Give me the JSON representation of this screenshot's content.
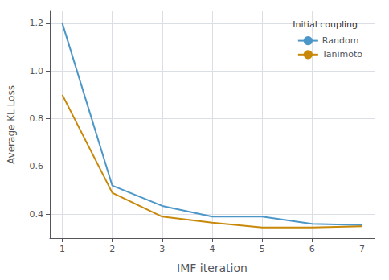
{
  "chart_data": {
    "type": "line",
    "x": [
      1,
      2,
      3,
      4,
      5,
      6,
      7
    ],
    "series": [
      {
        "name": "Random",
        "color": "#4C96C8",
        "values": [
          1.2,
          0.52,
          0.435,
          0.39,
          0.39,
          0.36,
          0.355
        ]
      },
      {
        "name": "Tanimoto",
        "color": "#C8880A",
        "values": [
          0.9,
          0.49,
          0.39,
          0.365,
          0.345,
          0.345,
          0.35
        ]
      }
    ],
    "xlabel": "IMF iteration",
    "ylabel": "Average KL Loss",
    "legend_title": "Initial coupling",
    "legend": "upper right",
    "xlim": [
      0.75,
      7.25
    ],
    "ylim": [
      0.3,
      1.25
    ],
    "xticks": [
      1,
      2,
      3,
      4,
      5,
      6,
      7
    ],
    "yticks": [
      0.4,
      0.6,
      0.8,
      {
        "value": 1.0,
        "label": "1.0"
      },
      1.2
    ],
    "grid": true
  }
}
